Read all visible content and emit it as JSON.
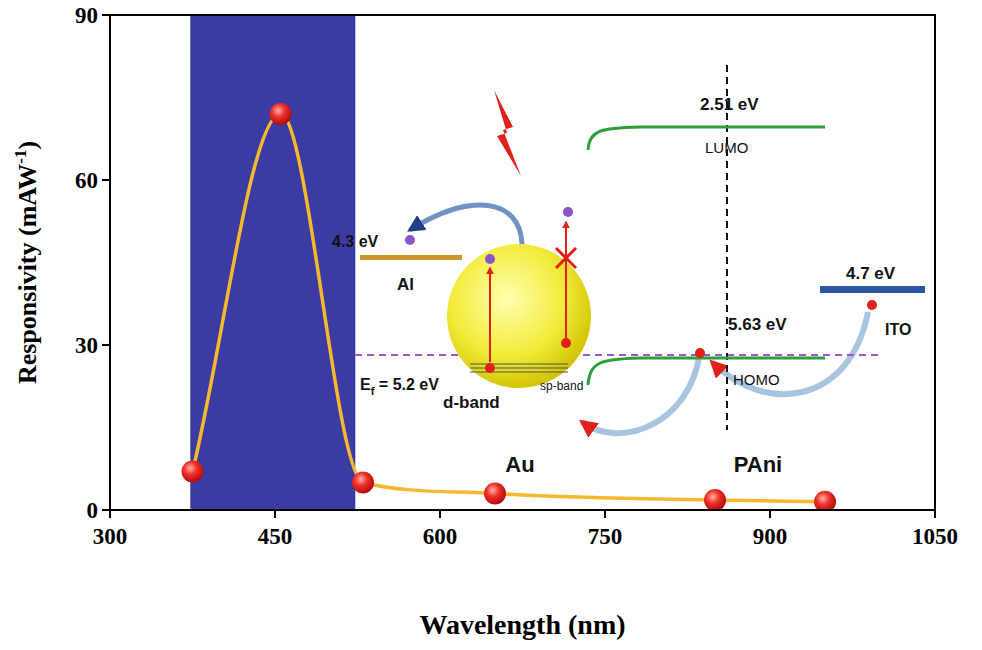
{
  "chart_data": {
    "type": "line",
    "x_label": "Wavelength (nm)",
    "y_label": [
      "Responsivity (mAW",
      "-1",
      ")"
    ],
    "x": [
      375,
      455,
      530,
      650,
      850,
      950
    ],
    "values": [
      7,
      72,
      5,
      3,
      1.8,
      1.5
    ],
    "color": "#f5b82e",
    "marker": "sphere",
    "line_style": "smooth",
    "xlim": [
      300,
      1050
    ],
    "xticks": [
      300,
      450,
      600,
      750,
      900,
      1050
    ],
    "ylim": [
      0,
      90
    ],
    "yticks": [
      0,
      30,
      60,
      90
    ],
    "grid": false,
    "highlight_range": [
      373,
      523
    ],
    "annotations": [
      "2.51 eV",
      "LUMO",
      "4.3 eV",
      "Al",
      "5.63 eV",
      "4.7 eV",
      "ITO",
      {
        "text": "E",
        "sub": "f",
        "after": " = 5.2 eV"
      },
      "sp-band",
      "HOMO",
      "d-band",
      "Au",
      "PAni"
    ]
  }
}
